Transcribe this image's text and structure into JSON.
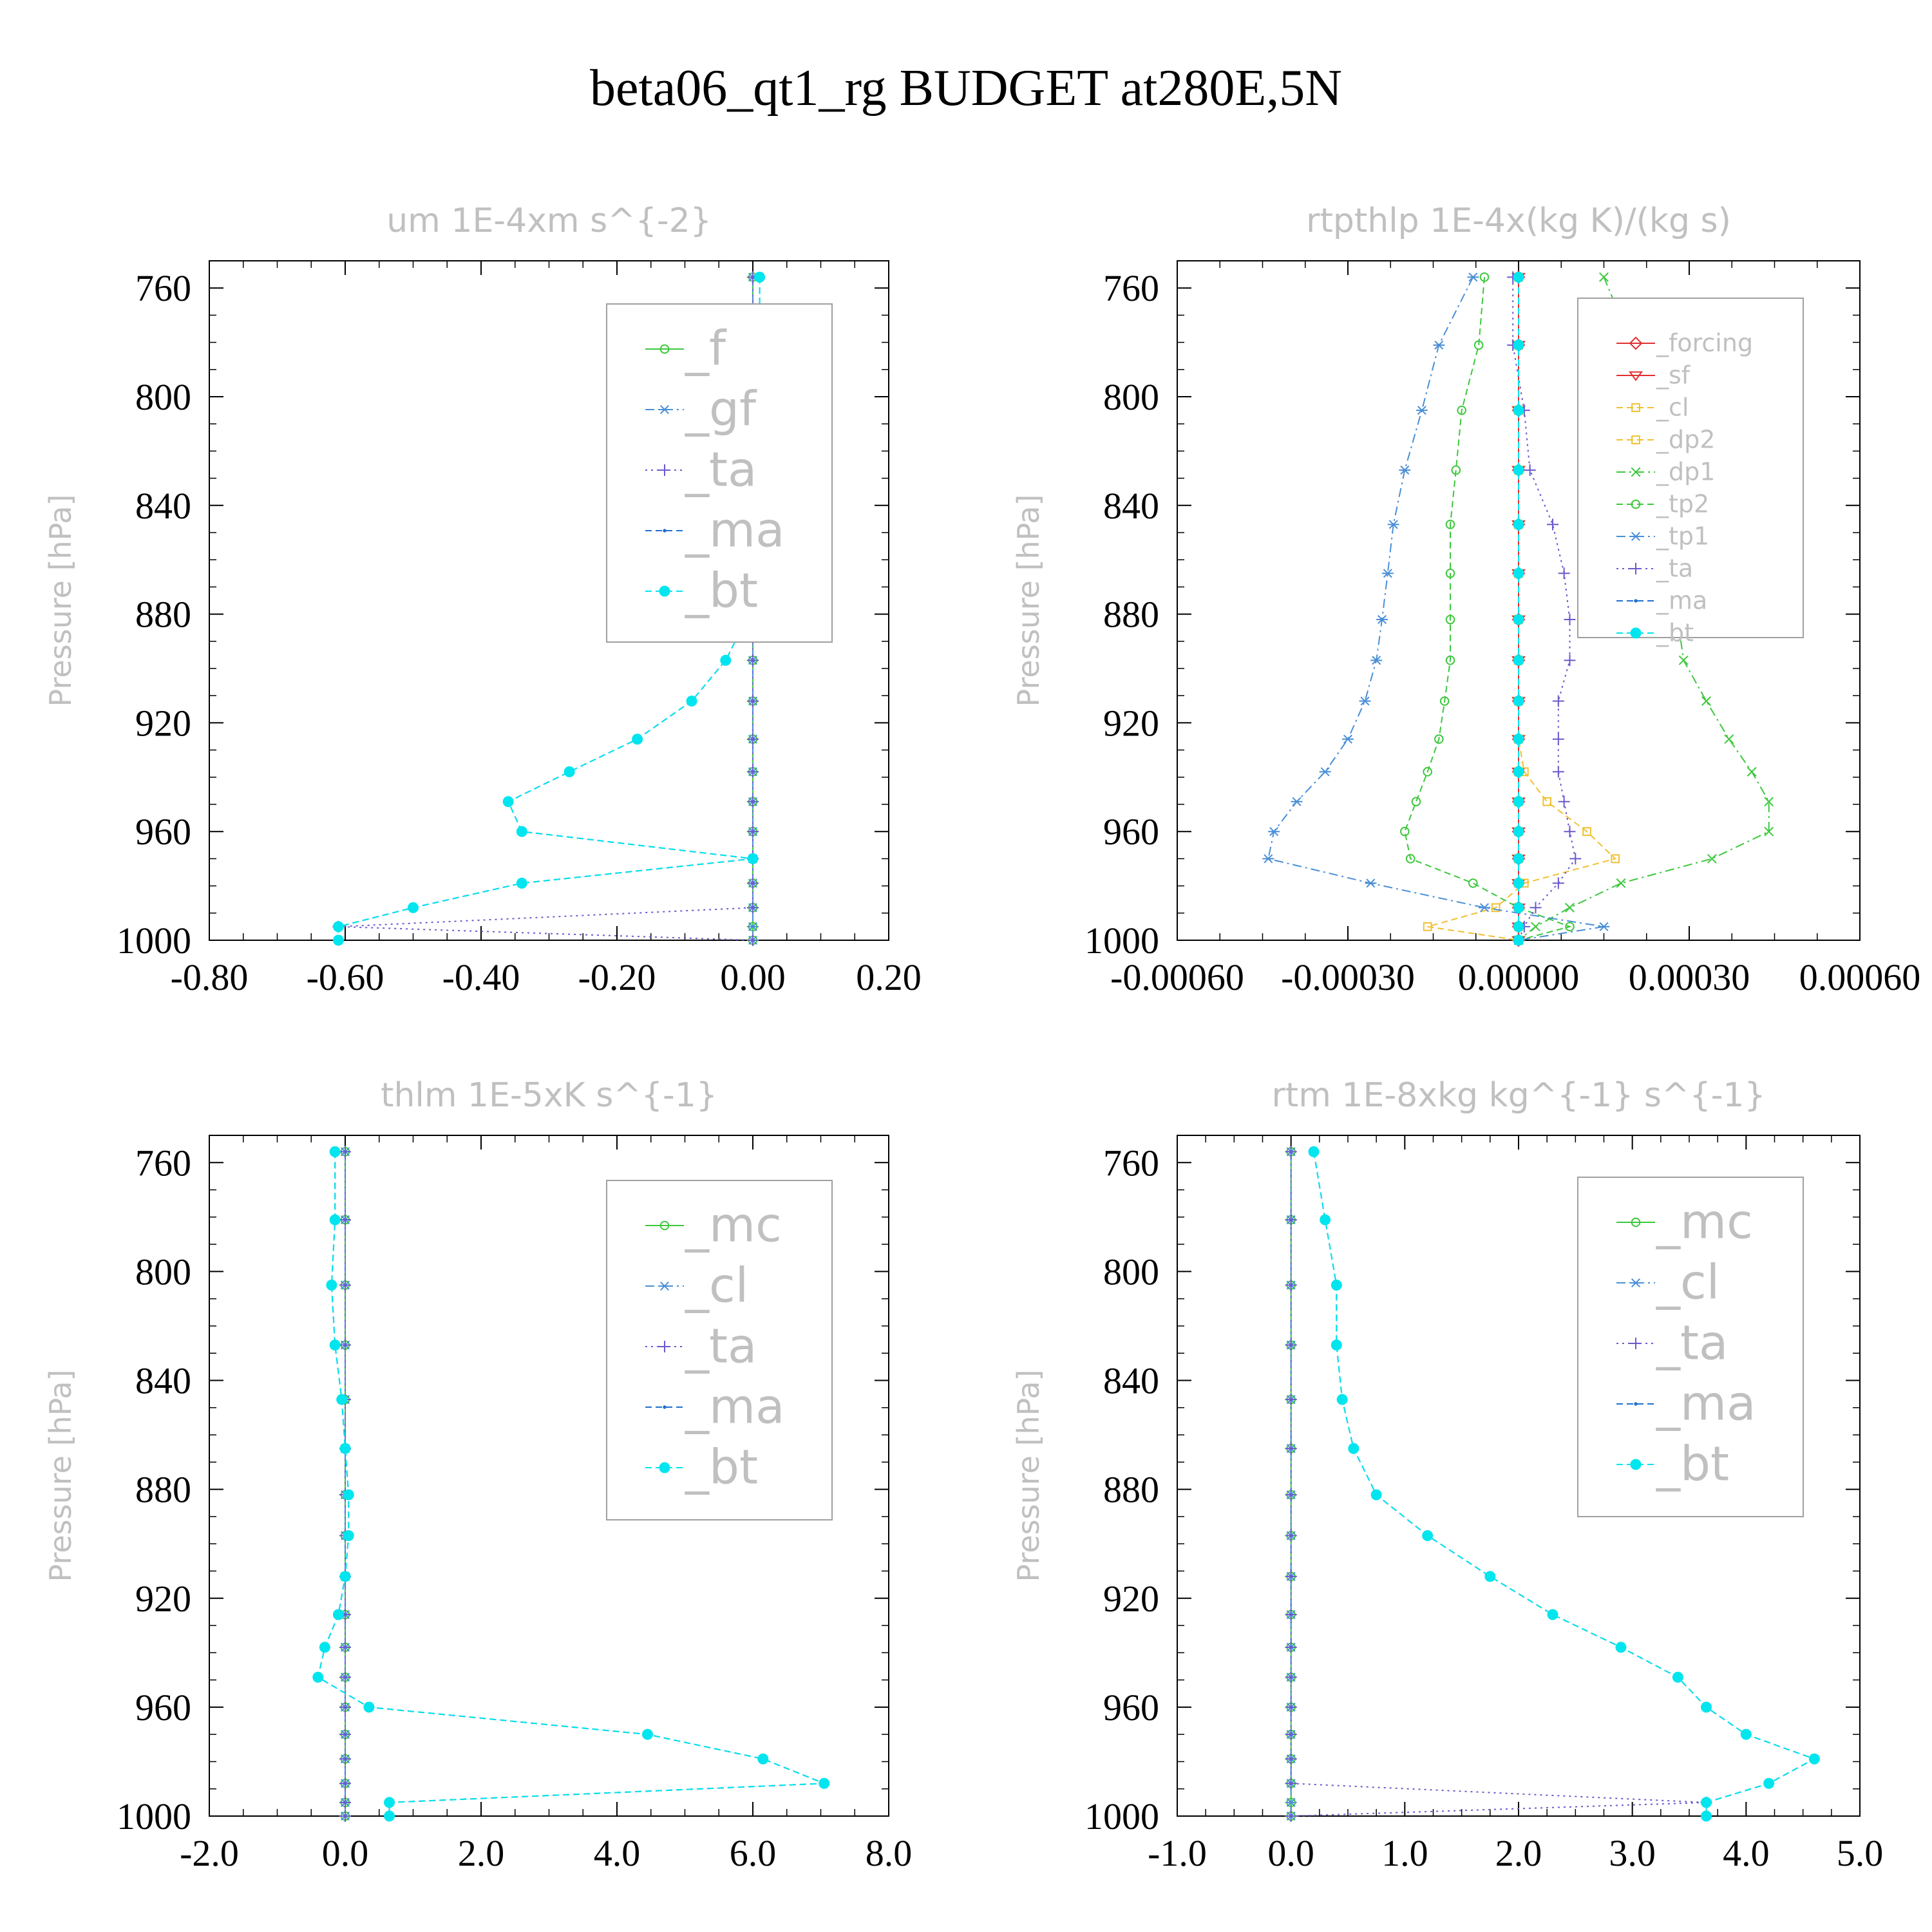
{
  "title": "beta06_qt1_rg  BUDGET at280E,5N",
  "colors": {
    "green": "#3cc83c",
    "steelblue": "#4a8fd6",
    "purple": "#6a5acd",
    "blue": "#1f6fd0",
    "cyan": "#00e5ee",
    "red": "#e03030",
    "gold": "#f0c030",
    "tick_text": "#000000",
    "label_text": "#c0c0c0"
  },
  "chart_data": [
    {
      "type": "line",
      "title": "um   1E-4xm s^{-2}",
      "ylabel": "Pressure [hPa]",
      "xlim": [
        -0.8,
        0.2
      ],
      "ylim": [
        1000,
        750
      ],
      "xticks": [
        "-0.80",
        "-0.60",
        "-0.40",
        "-0.20",
        "0.00",
        "0.20"
      ],
      "yticks": [
        "760",
        "800",
        "840",
        "880",
        "920",
        "960",
        "1000"
      ],
      "legend_position": "top-right",
      "pressure": [
        756,
        781,
        805,
        827,
        847,
        865,
        882,
        897,
        912,
        926,
        938,
        949,
        960,
        970,
        979,
        988,
        995,
        1000
      ],
      "series": [
        {
          "name": "_f",
          "marker": "circle",
          "style": "solid",
          "color": "green",
          "values": [
            0,
            0,
            0,
            0,
            0,
            0,
            0,
            0,
            0,
            0,
            0,
            0,
            0,
            0,
            0,
            0,
            0,
            0
          ]
        },
        {
          "name": "_gf",
          "marker": "asterisk",
          "style": "dashdot",
          "color": "steelblue",
          "values": [
            0,
            0,
            0,
            0,
            0,
            0,
            0,
            0,
            0,
            0,
            0,
            0,
            0,
            0,
            0,
            0,
            0,
            0
          ]
        },
        {
          "name": "_ta",
          "marker": "plus",
          "style": "dotted",
          "color": "purple",
          "values": [
            0,
            0,
            0,
            0,
            0,
            0,
            0,
            0,
            0,
            0,
            0,
            0,
            0,
            0,
            0,
            0,
            -0.61,
            0
          ]
        },
        {
          "name": "_ma",
          "marker": "dot",
          "style": "dashed",
          "color": "blue",
          "values": [
            0.01,
            0.01,
            0.02,
            0.02,
            0.02,
            0.01,
            -0.01,
            -0.04,
            -0.09,
            -0.17,
            -0.27,
            -0.36,
            -0.34,
            0,
            -0.34,
            -0.5,
            -0.61,
            -0.61
          ]
        },
        {
          "name": "_bt",
          "marker": "filled-circle",
          "style": "dashed",
          "color": "cyan",
          "values": [
            0.01,
            0.01,
            0.02,
            0.02,
            0.02,
            0.01,
            -0.01,
            -0.04,
            -0.09,
            -0.17,
            -0.27,
            -0.36,
            -0.34,
            0,
            -0.34,
            -0.5,
            -0.61,
            -0.61
          ]
        }
      ]
    },
    {
      "type": "line",
      "title": "rtpthlp   1E-4x(kg K)/(kg s)",
      "ylabel": "Pressure [hPa]",
      "xlim": [
        -0.0006,
        0.0006
      ],
      "ylim": [
        1000,
        750
      ],
      "xticks": [
        "-0.00060",
        "-0.00030",
        "0.00000",
        "0.00030",
        "0.00060"
      ],
      "yticks": [
        "760",
        "800",
        "840",
        "880",
        "920",
        "960",
        "1000"
      ],
      "legend_position": "top-right",
      "pressure": [
        756,
        781,
        805,
        827,
        847,
        865,
        882,
        897,
        912,
        926,
        938,
        949,
        960,
        970,
        979,
        988,
        995,
        1000
      ],
      "series": [
        {
          "name": "_forcing",
          "marker": "diamond",
          "style": "solid",
          "color": "red",
          "values": [
            0,
            0,
            0,
            0,
            0,
            0,
            0,
            0,
            0,
            0,
            0,
            0,
            0,
            0,
            0,
            0,
            0,
            0
          ]
        },
        {
          "name": "_sf",
          "marker": "triangle-down",
          "style": "solid",
          "color": "red",
          "values": [
            0,
            0,
            0,
            0,
            0,
            0,
            0,
            0,
            0,
            0,
            0,
            0,
            0,
            0,
            0,
            0,
            0,
            0
          ]
        },
        {
          "name": "_cl",
          "marker": "square",
          "style": "dashed",
          "color": "gold",
          "values": [
            0,
            0,
            0,
            0,
            0,
            0,
            0,
            0,
            0,
            0,
            0,
            0,
            0,
            0,
            0,
            0,
            0,
            0
          ]
        },
        {
          "name": "_dp2",
          "marker": "square",
          "style": "dashed",
          "color": "gold",
          "values": [
            0,
            0,
            0,
            0,
            0,
            0,
            0,
            0,
            0,
            0,
            1e-05,
            5e-05,
            0.00012,
            0.00017,
            1e-05,
            -4e-05,
            -0.00016,
            0
          ]
        },
        {
          "name": "_dp1",
          "marker": "cross",
          "style": "dashdot",
          "color": "green",
          "values": [
            0.00015,
            0.0002,
            0.00023,
            0.00025,
            0.00026,
            0.00027,
            0.00028,
            0.00029,
            0.00033,
            0.00037,
            0.00041,
            0.00044,
            0.00044,
            0.00034,
            0.00018,
            9e-05,
            3e-05,
            0
          ]
        },
        {
          "name": "_tp2",
          "marker": "circle",
          "style": "dashed",
          "color": "green",
          "values": [
            -6e-05,
            -7e-05,
            -0.0001,
            -0.00011,
            -0.00012,
            -0.00012,
            -0.00012,
            -0.00012,
            -0.00013,
            -0.00014,
            -0.00016,
            -0.00018,
            -0.0002,
            -0.00019,
            -8e-05,
            0,
            9e-05,
            0
          ]
        },
        {
          "name": "_tp1",
          "marker": "asterisk",
          "style": "dashdot",
          "color": "steelblue",
          "values": [
            -8e-05,
            -0.00014,
            -0.00017,
            -0.0002,
            -0.00022,
            -0.00023,
            -0.00024,
            -0.00025,
            -0.00027,
            -0.0003,
            -0.00034,
            -0.00039,
            -0.00043,
            -0.00044,
            -0.00026,
            -6e-05,
            0.00015,
            0
          ]
        },
        {
          "name": "_ta",
          "marker": "plus",
          "style": "dotted",
          "color": "purple",
          "values": [
            -1e-05,
            -1e-05,
            1e-05,
            2e-05,
            6e-05,
            8e-05,
            9e-05,
            9e-05,
            7e-05,
            7e-05,
            7e-05,
            8e-05,
            9e-05,
            0.0001,
            7e-05,
            3e-05,
            1e-05,
            0
          ]
        },
        {
          "name": "_ma",
          "marker": "dot",
          "style": "dashed",
          "color": "blue",
          "values": [
            0,
            0,
            0,
            0,
            0,
            0,
            0,
            0,
            0,
            0,
            0,
            0,
            0,
            0,
            0,
            0,
            0,
            0
          ]
        },
        {
          "name": "_bt",
          "marker": "filled-circle",
          "style": "dashed",
          "color": "cyan",
          "values": [
            0,
            0,
            0,
            0,
            0,
            0,
            0,
            0,
            0,
            0,
            0,
            0,
            0,
            0,
            0,
            0,
            0,
            0
          ]
        }
      ]
    },
    {
      "type": "line",
      "title": "thlm   1E-5xK s^{-1}",
      "ylabel": "Pressure [hPa]",
      "xlim": [
        -2.0,
        8.0
      ],
      "ylim": [
        1000,
        750
      ],
      "xticks": [
        "-2.0",
        "0.0",
        "2.0",
        "4.0",
        "6.0",
        "8.0"
      ],
      "yticks": [
        "760",
        "800",
        "840",
        "880",
        "920",
        "960",
        "1000"
      ],
      "legend_position": "top-right",
      "pressure": [
        756,
        781,
        805,
        827,
        847,
        865,
        882,
        897,
        912,
        926,
        938,
        949,
        960,
        970,
        979,
        988,
        995,
        1000
      ],
      "series": [
        {
          "name": "_mc",
          "marker": "circle",
          "style": "solid",
          "color": "green",
          "values": [
            0,
            0,
            0,
            0,
            0,
            0,
            0,
            0,
            0,
            0,
            0,
            0,
            0,
            0,
            0,
            0,
            0,
            0
          ]
        },
        {
          "name": "_cl",
          "marker": "asterisk",
          "style": "dashdot",
          "color": "steelblue",
          "values": [
            0,
            0,
            0,
            0,
            0,
            0,
            0,
            0,
            0,
            0,
            0,
            0,
            0,
            0,
            0,
            0,
            0,
            0
          ]
        },
        {
          "name": "_ta",
          "marker": "plus",
          "style": "dotted",
          "color": "purple",
          "values": [
            0,
            0,
            0,
            0,
            0,
            0,
            0,
            0,
            0,
            0,
            0,
            0,
            0,
            0,
            0,
            0,
            0,
            0
          ]
        },
        {
          "name": "_ma",
          "marker": "dot",
          "style": "dashed",
          "color": "blue",
          "values": [
            -0.15,
            -0.15,
            -0.2,
            -0.15,
            -0.05,
            0,
            0.05,
            0.05,
            0,
            -0.1,
            -0.3,
            -0.4,
            0.35,
            4.45,
            6.15,
            7.05,
            0.65,
            0.65
          ]
        },
        {
          "name": "_bt",
          "marker": "filled-circle",
          "style": "dashed",
          "color": "cyan",
          "values": [
            -0.15,
            -0.15,
            -0.2,
            -0.15,
            -0.05,
            0,
            0.05,
            0.05,
            0,
            -0.1,
            -0.3,
            -0.4,
            0.35,
            4.45,
            6.15,
            7.05,
            0.65,
            0.65
          ]
        }
      ]
    },
    {
      "type": "line",
      "title": "rtm   1E-8xkg kg^{-1} s^{-1}",
      "ylabel": "Pressure [hPa]",
      "xlim": [
        -1.0,
        5.0
      ],
      "ylim": [
        1000,
        750
      ],
      "xticks": [
        "-1.0",
        "0.0",
        "1.0",
        "2.0",
        "3.0",
        "4.0",
        "5.0"
      ],
      "yticks": [
        "760",
        "800",
        "840",
        "880",
        "920",
        "960",
        "1000"
      ],
      "legend_position": "top-right",
      "pressure": [
        756,
        781,
        805,
        827,
        847,
        865,
        882,
        897,
        912,
        926,
        938,
        949,
        960,
        970,
        979,
        988,
        995,
        1000
      ],
      "series": [
        {
          "name": "_mc",
          "marker": "circle",
          "style": "solid",
          "color": "green",
          "values": [
            0,
            0,
            0,
            0,
            0,
            0,
            0,
            0,
            0,
            0,
            0,
            0,
            0,
            0,
            0,
            0,
            0,
            0
          ]
        },
        {
          "name": "_cl",
          "marker": "asterisk",
          "style": "dashdot",
          "color": "steelblue",
          "values": [
            0,
            0,
            0,
            0,
            0,
            0,
            0,
            0,
            0,
            0,
            0,
            0,
            0,
            0,
            0,
            0,
            0,
            0
          ]
        },
        {
          "name": "_ta",
          "marker": "plus",
          "style": "dotted",
          "color": "purple",
          "values": [
            0,
            0,
            0,
            0,
            0,
            0,
            0,
            0,
            0,
            0,
            0,
            0,
            0,
            0,
            0,
            0,
            3.65,
            0
          ]
        },
        {
          "name": "_ma",
          "marker": "dot",
          "style": "dashed",
          "color": "blue",
          "values": [
            0.2,
            0.3,
            0.4,
            0.4,
            0.45,
            0.55,
            0.75,
            1.2,
            1.75,
            2.3,
            2.9,
            3.4,
            3.65,
            4.0,
            4.6,
            4.2,
            3.65,
            3.65
          ]
        },
        {
          "name": "_bt",
          "marker": "filled-circle",
          "style": "dashed",
          "color": "cyan",
          "values": [
            0.2,
            0.3,
            0.4,
            0.4,
            0.45,
            0.55,
            0.75,
            1.2,
            1.75,
            2.3,
            2.9,
            3.4,
            3.65,
            4.0,
            4.6,
            4.2,
            3.65,
            3.65
          ]
        }
      ]
    }
  ]
}
